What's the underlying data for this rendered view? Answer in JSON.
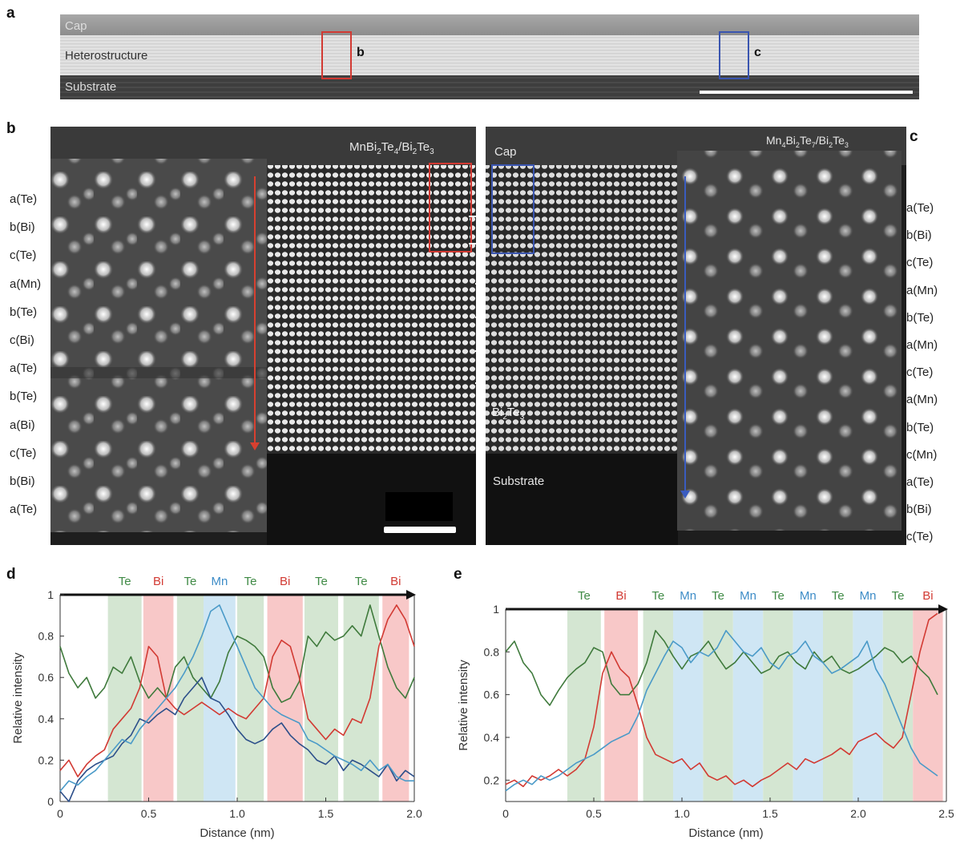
{
  "panel_letters": {
    "a": "a",
    "b": "b",
    "c": "c",
    "d": "d",
    "e": "e"
  },
  "panel_a": {
    "layers": [
      "Cap",
      "Heterostructure",
      "Substrate"
    ],
    "box_labels": [
      "b",
      "c"
    ],
    "colors": {
      "box_b": "#d23a33",
      "box_c": "#3a55b0"
    }
  },
  "panel_b": {
    "title_parts": [
      "MnBi",
      "2",
      "Te",
      "4",
      "/Bi",
      "2",
      "Te",
      "3"
    ],
    "atom_labels": [
      "a(Te)",
      "b(Bi)",
      "c(Te)",
      "a(Mn)",
      "b(Te)",
      "c(Bi)",
      "a(Te)",
      "b(Te)",
      "a(Bi)",
      "c(Te)",
      "b(Bi)",
      "a(Te)"
    ],
    "arrow_color": "#d84030"
  },
  "panel_c": {
    "title_parts": [
      "Mn",
      "4",
      "Bi",
      "2",
      "Te",
      "7",
      "/Bi",
      "2",
      "Te",
      "3"
    ],
    "cap_label": "Cap",
    "substrate_label": "Substrate",
    "layer_label_parts": [
      "Bi",
      "2",
      "Te",
      "3"
    ],
    "atom_labels": [
      "a(Te)",
      "b(Bi)",
      "c(Te)",
      "a(Mn)",
      "b(Te)",
      "a(Mn)",
      "c(Te)",
      "a(Mn)",
      "b(Te)",
      "c(Mn)",
      "a(Te)",
      "b(Bi)",
      "c(Te)"
    ],
    "arrow_color": "#3a5cc0"
  },
  "chart_data": [
    {
      "id": "d",
      "type": "line",
      "xlabel": "Distance (nm)",
      "ylabel": "Relative intensity",
      "xlim": [
        0,
        2.0
      ],
      "ylim": [
        0,
        1
      ],
      "xticks": [
        "0",
        "0.5",
        "1.0",
        "1.5",
        "2.0"
      ],
      "yticks": [
        "0",
        "0.2",
        "0.4",
        "0.6",
        "0.8",
        "1"
      ],
      "bands": [
        {
          "label": "Te",
          "x0": 0.27,
          "x1": 0.46,
          "color": "#d4e6d2",
          "text_color": "#3f8a45"
        },
        {
          "label": "Bi",
          "x0": 0.47,
          "x1": 0.64,
          "color": "#f8c8c8",
          "text_color": "#d23a33"
        },
        {
          "label": "Te",
          "x0": 0.66,
          "x1": 0.81,
          "color": "#d4e6d2",
          "text_color": "#3f8a45"
        },
        {
          "label": "Mn",
          "x0": 0.81,
          "x1": 0.99,
          "color": "#cfe6f4",
          "text_color": "#3d8cc7"
        },
        {
          "label": "Te",
          "x0": 1.0,
          "x1": 1.15,
          "color": "#d4e6d2",
          "text_color": "#3f8a45"
        },
        {
          "label": "Bi",
          "x0": 1.17,
          "x1": 1.37,
          "color": "#f8c8c8",
          "text_color": "#d23a33"
        },
        {
          "label": "Te",
          "x0": 1.38,
          "x1": 1.57,
          "color": "#d4e6d2",
          "text_color": "#3f8a45"
        },
        {
          "label": "Te",
          "x0": 1.6,
          "x1": 1.8,
          "color": "#d4e6d2",
          "text_color": "#3f8a45"
        },
        {
          "label": "Bi",
          "x0": 1.82,
          "x1": 1.97,
          "color": "#f8c8c8",
          "text_color": "#d23a33"
        }
      ],
      "series": [
        {
          "color": "#3f7a3c",
          "x": [
            0,
            0.05,
            0.1,
            0.15,
            0.2,
            0.25,
            0.3,
            0.35,
            0.4,
            0.45,
            0.5,
            0.55,
            0.6,
            0.65,
            0.7,
            0.75,
            0.8,
            0.85,
            0.9,
            0.95,
            1.0,
            1.05,
            1.1,
            1.15,
            1.2,
            1.25,
            1.3,
            1.35,
            1.4,
            1.45,
            1.5,
            1.55,
            1.6,
            1.65,
            1.7,
            1.75,
            1.8,
            1.85,
            1.9,
            1.95,
            2.0
          ],
          "y": [
            0.75,
            0.62,
            0.55,
            0.6,
            0.5,
            0.55,
            0.65,
            0.62,
            0.7,
            0.58,
            0.5,
            0.55,
            0.5,
            0.65,
            0.7,
            0.6,
            0.55,
            0.5,
            0.58,
            0.72,
            0.8,
            0.78,
            0.75,
            0.7,
            0.55,
            0.48,
            0.5,
            0.58,
            0.8,
            0.75,
            0.82,
            0.78,
            0.8,
            0.85,
            0.8,
            0.95,
            0.8,
            0.65,
            0.55,
            0.5,
            0.6
          ]
        },
        {
          "color": "#d23a33",
          "x": [
            0,
            0.05,
            0.1,
            0.15,
            0.2,
            0.25,
            0.3,
            0.35,
            0.4,
            0.45,
            0.5,
            0.55,
            0.6,
            0.65,
            0.7,
            0.75,
            0.8,
            0.85,
            0.9,
            0.95,
            1.0,
            1.05,
            1.1,
            1.15,
            1.2,
            1.25,
            1.3,
            1.35,
            1.4,
            1.45,
            1.5,
            1.55,
            1.6,
            1.65,
            1.7,
            1.75,
            1.8,
            1.85,
            1.9,
            1.95,
            2.0
          ],
          "y": [
            0.15,
            0.2,
            0.12,
            0.18,
            0.22,
            0.25,
            0.35,
            0.4,
            0.45,
            0.55,
            0.75,
            0.7,
            0.5,
            0.45,
            0.42,
            0.45,
            0.48,
            0.45,
            0.42,
            0.45,
            0.42,
            0.4,
            0.45,
            0.5,
            0.7,
            0.78,
            0.75,
            0.6,
            0.4,
            0.35,
            0.3,
            0.35,
            0.32,
            0.4,
            0.38,
            0.5,
            0.75,
            0.88,
            0.95,
            0.88,
            0.75
          ]
        },
        {
          "color": "#2c4f8a",
          "x": [
            0,
            0.05,
            0.1,
            0.15,
            0.2,
            0.25,
            0.3,
            0.35,
            0.4,
            0.45,
            0.5,
            0.55,
            0.6,
            0.65,
            0.7,
            0.75,
            0.8,
            0.85,
            0.9,
            0.95,
            1.0,
            1.05,
            1.1,
            1.15,
            1.2,
            1.25,
            1.3,
            1.35,
            1.4,
            1.45,
            1.5,
            1.55,
            1.6,
            1.65,
            1.7,
            1.75,
            1.8,
            1.85,
            1.9,
            1.95,
            2.0
          ],
          "y": [
            0.05,
            0.0,
            0.1,
            0.15,
            0.18,
            0.2,
            0.22,
            0.28,
            0.32,
            0.4,
            0.38,
            0.42,
            0.45,
            0.42,
            0.5,
            0.55,
            0.6,
            0.5,
            0.48,
            0.42,
            0.35,
            0.3,
            0.28,
            0.3,
            0.35,
            0.38,
            0.32,
            0.28,
            0.25,
            0.2,
            0.18,
            0.22,
            0.15,
            0.2,
            0.18,
            0.15,
            0.12,
            0.18,
            0.1,
            0.15,
            0.12
          ]
        },
        {
          "color": "#4a9ac8",
          "x": [
            0,
            0.05,
            0.1,
            0.15,
            0.2,
            0.25,
            0.3,
            0.35,
            0.4,
            0.45,
            0.5,
            0.55,
            0.6,
            0.65,
            0.7,
            0.75,
            0.8,
            0.85,
            0.9,
            0.95,
            1.0,
            1.05,
            1.1,
            1.15,
            1.2,
            1.25,
            1.3,
            1.35,
            1.4,
            1.45,
            1.5,
            1.55,
            1.6,
            1.65,
            1.7,
            1.75,
            1.8,
            1.85,
            1.9,
            1.95,
            2.0
          ],
          "y": [
            0.05,
            0.1,
            0.08,
            0.12,
            0.15,
            0.2,
            0.25,
            0.3,
            0.28,
            0.35,
            0.4,
            0.45,
            0.5,
            0.55,
            0.62,
            0.7,
            0.8,
            0.92,
            0.95,
            0.85,
            0.75,
            0.65,
            0.55,
            0.5,
            0.45,
            0.42,
            0.4,
            0.38,
            0.3,
            0.28,
            0.25,
            0.22,
            0.2,
            0.18,
            0.15,
            0.2,
            0.15,
            0.18,
            0.12,
            0.1,
            0.1
          ]
        }
      ]
    },
    {
      "id": "e",
      "type": "line",
      "xlabel": "Distance (nm)",
      "ylabel": "Relative intensity",
      "xlim": [
        0,
        2.5
      ],
      "ylim": [
        0.1,
        1
      ],
      "xticks": [
        "0",
        "0.5",
        "1.0",
        "1.5",
        "2.0",
        "2.5"
      ],
      "yticks": [
        "0.2",
        "0.4",
        "0.6",
        "0.8",
        "1"
      ],
      "bands": [
        {
          "label": "Te",
          "x0": 0.35,
          "x1": 0.54,
          "color": "#d4e6d2",
          "text_color": "#3f8a45"
        },
        {
          "label": "Bi",
          "x0": 0.56,
          "x1": 0.75,
          "color": "#f8c8c8",
          "text_color": "#d23a33"
        },
        {
          "label": "Te",
          "x0": 0.78,
          "x1": 0.95,
          "color": "#d4e6d2",
          "text_color": "#3f8a45"
        },
        {
          "label": "Mn",
          "x0": 0.95,
          "x1": 1.12,
          "color": "#cfe6f4",
          "text_color": "#3d8cc7"
        },
        {
          "label": "Te",
          "x0": 1.12,
          "x1": 1.29,
          "color": "#d4e6d2",
          "text_color": "#3f8a45"
        },
        {
          "label": "Mn",
          "x0": 1.29,
          "x1": 1.46,
          "color": "#cfe6f4",
          "text_color": "#3d8cc7"
        },
        {
          "label": "Te",
          "x0": 1.46,
          "x1": 1.63,
          "color": "#d4e6d2",
          "text_color": "#3f8a45"
        },
        {
          "label": "Mn",
          "x0": 1.63,
          "x1": 1.8,
          "color": "#cfe6f4",
          "text_color": "#3d8cc7"
        },
        {
          "label": "Te",
          "x0": 1.8,
          "x1": 1.97,
          "color": "#d4e6d2",
          "text_color": "#3f8a45"
        },
        {
          "label": "Mn",
          "x0": 1.97,
          "x1": 2.14,
          "color": "#cfe6f4",
          "text_color": "#3d8cc7"
        },
        {
          "label": "Te",
          "x0": 2.14,
          "x1": 2.31,
          "color": "#d4e6d2",
          "text_color": "#3f8a45"
        },
        {
          "label": "Bi",
          "x0": 2.31,
          "x1": 2.48,
          "color": "#f8c8c8",
          "text_color": "#d23a33"
        }
      ],
      "series": [
        {
          "color": "#3f7a3c",
          "x": [
            0,
            0.05,
            0.1,
            0.15,
            0.2,
            0.25,
            0.3,
            0.35,
            0.4,
            0.45,
            0.5,
            0.55,
            0.6,
            0.65,
            0.7,
            0.75,
            0.8,
            0.85,
            0.9,
            0.95,
            1.0,
            1.05,
            1.1,
            1.15,
            1.2,
            1.25,
            1.3,
            1.35,
            1.4,
            1.45,
            1.5,
            1.55,
            1.6,
            1.65,
            1.7,
            1.75,
            1.8,
            1.85,
            1.9,
            1.95,
            2.0,
            2.05,
            2.1,
            2.15,
            2.2,
            2.25,
            2.3,
            2.35,
            2.4,
            2.45
          ],
          "y": [
            0.8,
            0.85,
            0.75,
            0.7,
            0.6,
            0.55,
            0.62,
            0.68,
            0.72,
            0.75,
            0.82,
            0.8,
            0.65,
            0.6,
            0.6,
            0.65,
            0.75,
            0.9,
            0.85,
            0.78,
            0.72,
            0.78,
            0.8,
            0.85,
            0.78,
            0.72,
            0.75,
            0.8,
            0.75,
            0.7,
            0.72,
            0.78,
            0.8,
            0.75,
            0.72,
            0.8,
            0.75,
            0.78,
            0.72,
            0.7,
            0.72,
            0.75,
            0.78,
            0.82,
            0.8,
            0.75,
            0.78,
            0.72,
            0.68,
            0.6
          ]
        },
        {
          "color": "#d23a33",
          "x": [
            0,
            0.05,
            0.1,
            0.15,
            0.2,
            0.25,
            0.3,
            0.35,
            0.4,
            0.45,
            0.5,
            0.55,
            0.6,
            0.65,
            0.7,
            0.75,
            0.8,
            0.85,
            0.9,
            0.95,
            1.0,
            1.05,
            1.1,
            1.15,
            1.2,
            1.25,
            1.3,
            1.35,
            1.4,
            1.45,
            1.5,
            1.55,
            1.6,
            1.65,
            1.7,
            1.75,
            1.8,
            1.85,
            1.9,
            1.95,
            2.0,
            2.05,
            2.1,
            2.15,
            2.2,
            2.25,
            2.3,
            2.35,
            2.4,
            2.45
          ],
          "y": [
            0.18,
            0.2,
            0.17,
            0.22,
            0.2,
            0.22,
            0.25,
            0.22,
            0.25,
            0.3,
            0.45,
            0.7,
            0.8,
            0.72,
            0.68,
            0.55,
            0.4,
            0.32,
            0.3,
            0.28,
            0.3,
            0.25,
            0.28,
            0.22,
            0.2,
            0.22,
            0.18,
            0.2,
            0.17,
            0.2,
            0.22,
            0.25,
            0.28,
            0.25,
            0.3,
            0.28,
            0.3,
            0.32,
            0.35,
            0.32,
            0.38,
            0.4,
            0.42,
            0.38,
            0.35,
            0.4,
            0.6,
            0.8,
            0.95,
            0.98
          ]
        },
        {
          "color": "#4a9ac8",
          "x": [
            0,
            0.05,
            0.1,
            0.15,
            0.2,
            0.25,
            0.3,
            0.35,
            0.4,
            0.45,
            0.5,
            0.55,
            0.6,
            0.65,
            0.7,
            0.75,
            0.8,
            0.85,
            0.9,
            0.95,
            1.0,
            1.05,
            1.1,
            1.15,
            1.2,
            1.25,
            1.3,
            1.35,
            1.4,
            1.45,
            1.5,
            1.55,
            1.6,
            1.65,
            1.7,
            1.75,
            1.8,
            1.85,
            1.9,
            1.95,
            2.0,
            2.05,
            2.1,
            2.15,
            2.2,
            2.25,
            2.3,
            2.35,
            2.4,
            2.45
          ],
          "y": [
            0.15,
            0.18,
            0.2,
            0.18,
            0.22,
            0.2,
            0.22,
            0.25,
            0.28,
            0.3,
            0.32,
            0.35,
            0.38,
            0.4,
            0.42,
            0.5,
            0.62,
            0.7,
            0.78,
            0.85,
            0.82,
            0.75,
            0.8,
            0.78,
            0.82,
            0.9,
            0.85,
            0.8,
            0.78,
            0.82,
            0.75,
            0.72,
            0.78,
            0.8,
            0.85,
            0.78,
            0.75,
            0.7,
            0.72,
            0.75,
            0.78,
            0.85,
            0.72,
            0.65,
            0.55,
            0.45,
            0.35,
            0.28,
            0.25,
            0.22
          ]
        }
      ]
    }
  ]
}
